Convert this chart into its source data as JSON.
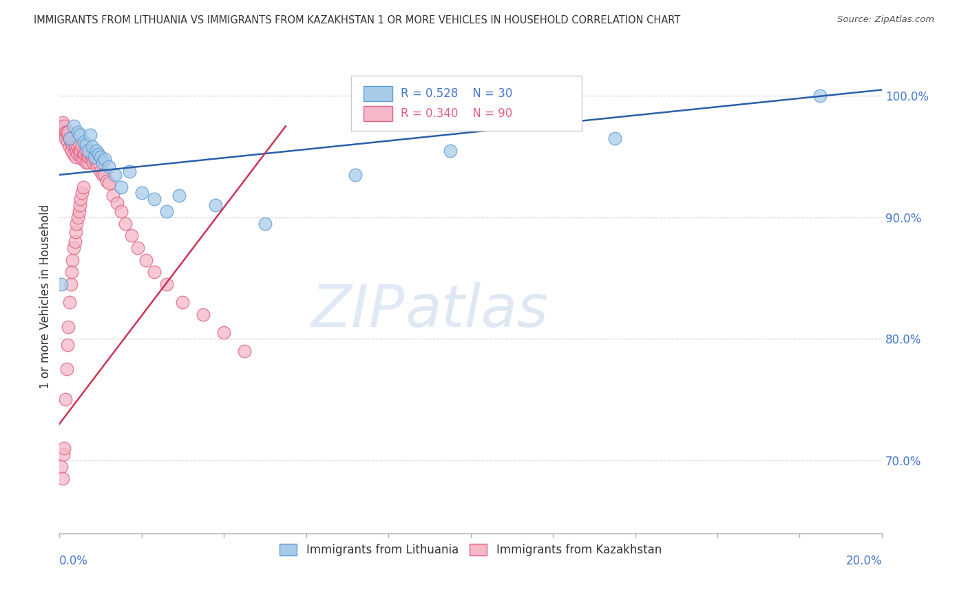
{
  "title": "IMMIGRANTS FROM LITHUANIA VS IMMIGRANTS FROM KAZAKHSTAN 1 OR MORE VEHICLES IN HOUSEHOLD CORRELATION CHART",
  "source": "Source: ZipAtlas.com",
  "ylabel": "1 or more Vehicles in Household",
  "xlim": [
    0.0,
    20.0
  ],
  "ylim": [
    64.0,
    103.0
  ],
  "yticks": [
    70.0,
    80.0,
    90.0,
    100.0
  ],
  "legend_blue_r": "R = 0.528",
  "legend_blue_n": "N = 30",
  "legend_pink_r": "R = 0.340",
  "legend_pink_n": "N = 90",
  "blue_color": "#a8cce8",
  "pink_color": "#f4b8c8",
  "blue_edge_color": "#5b9bd5",
  "pink_edge_color": "#e06080",
  "blue_line_color": "#2b5fa8",
  "pink_line_color": "#cc3355",
  "axis_label_color": "#4477cc",
  "watermark_color": "#dde8f5",
  "blue_line_x0": 0.0,
  "blue_line_y0": 93.5,
  "blue_line_x1": 20.0,
  "blue_line_y1": 100.5,
  "pink_line_x0": 0.0,
  "pink_line_y0": 73.0,
  "pink_line_x1": 5.5,
  "pink_line_y1": 97.5,
  "blue_x": [
    0.25,
    0.35,
    0.45,
    0.5,
    0.6,
    0.65,
    0.7,
    0.75,
    0.8,
    0.85,
    0.9,
    0.95,
    1.0,
    1.05,
    1.1,
    1.2,
    1.35,
    1.5,
    1.7,
    2.0,
    2.3,
    2.6,
    2.9,
    3.8,
    5.0,
    7.2,
    9.5,
    13.5,
    18.5,
    0.05
  ],
  "blue_y": [
    96.5,
    97.5,
    97.0,
    96.8,
    96.2,
    96.0,
    95.5,
    96.8,
    95.8,
    95.0,
    95.5,
    95.2,
    95.0,
    94.5,
    94.8,
    94.2,
    93.5,
    92.5,
    93.8,
    92.0,
    91.5,
    90.5,
    91.8,
    91.0,
    89.5,
    93.5,
    95.5,
    96.5,
    100.0,
    84.5
  ],
  "pink_x": [
    0.05,
    0.05,
    0.08,
    0.1,
    0.12,
    0.15,
    0.15,
    0.18,
    0.2,
    0.2,
    0.22,
    0.25,
    0.25,
    0.28,
    0.3,
    0.3,
    0.32,
    0.35,
    0.35,
    0.38,
    0.4,
    0.4,
    0.42,
    0.45,
    0.45,
    0.48,
    0.5,
    0.5,
    0.52,
    0.55,
    0.55,
    0.58,
    0.6,
    0.6,
    0.62,
    0.65,
    0.65,
    0.68,
    0.7,
    0.7,
    0.72,
    0.75,
    0.78,
    0.8,
    0.82,
    0.85,
    0.88,
    0.9,
    0.92,
    0.95,
    1.0,
    1.05,
    1.1,
    1.15,
    1.2,
    1.3,
    1.4,
    1.5,
    1.6,
    1.75,
    1.9,
    2.1,
    2.3,
    2.6,
    3.0,
    3.5,
    4.0,
    4.5,
    0.05,
    0.08,
    0.1,
    0.12,
    0.15,
    0.18,
    0.2,
    0.22,
    0.25,
    0.28,
    0.3,
    0.32,
    0.35,
    0.38,
    0.4,
    0.42,
    0.45,
    0.48,
    0.5,
    0.52,
    0.55,
    0.58
  ],
  "pink_y": [
    97.5,
    97.0,
    97.8,
    97.2,
    97.5,
    97.0,
    96.5,
    97.0,
    96.8,
    96.2,
    97.0,
    96.5,
    95.8,
    96.2,
    96.5,
    95.5,
    96.0,
    96.2,
    95.2,
    96.0,
    95.8,
    95.0,
    95.5,
    95.8,
    95.2,
    95.5,
    96.0,
    95.2,
    95.5,
    95.8,
    94.8,
    95.2,
    95.5,
    94.8,
    95.2,
    95.5,
    94.5,
    95.0,
    95.2,
    94.5,
    95.0,
    95.2,
    94.8,
    95.0,
    94.5,
    95.0,
    94.5,
    94.8,
    94.2,
    94.5,
    93.8,
    93.5,
    93.5,
    93.0,
    92.8,
    91.8,
    91.2,
    90.5,
    89.5,
    88.5,
    87.5,
    86.5,
    85.5,
    84.5,
    83.0,
    82.0,
    80.5,
    79.0,
    69.5,
    68.5,
    70.5,
    71.0,
    75.0,
    77.5,
    79.5,
    81.0,
    83.0,
    84.5,
    85.5,
    86.5,
    87.5,
    88.0,
    88.8,
    89.5,
    90.0,
    90.5,
    91.0,
    91.5,
    92.0,
    92.5
  ]
}
